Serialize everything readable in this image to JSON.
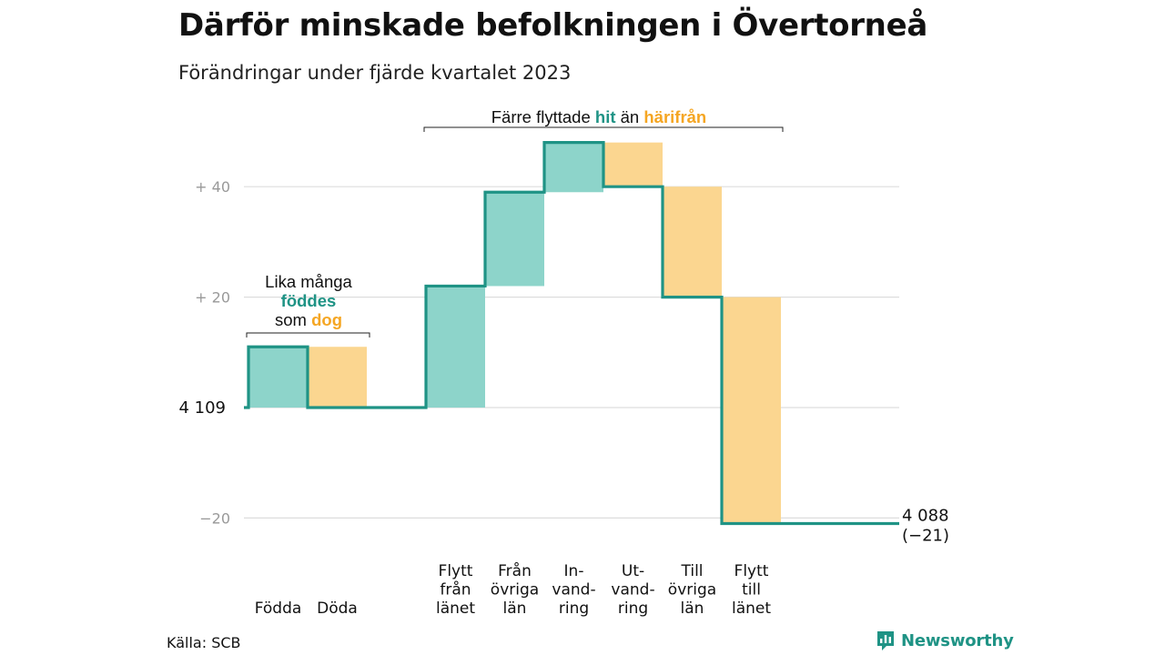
{
  "title": "Därför minskade befolkningen i Övertorneå",
  "subtitle": "Förändringar under fjärde kvartalet 2023",
  "source": "Källa: SCB",
  "brand": "Newsworthy",
  "brand_icon": "bar-chart-logo-icon",
  "colors": {
    "increase": "#8dd4ca",
    "decrease": "#fbd690",
    "line": "#1f9385",
    "accent_teal": "#1f9385",
    "accent_orange": "#f5a623",
    "grid": "#dddddd"
  },
  "chart_data": {
    "type": "waterfall",
    "start_label": "4 109",
    "start_value": 4109,
    "end_value": 4088,
    "end_label": "4 088",
    "end_change_label": "(−21)",
    "ylim": [
      -22,
      48
    ],
    "yticks": [
      {
        "value": 40,
        "label": "+  40"
      },
      {
        "value": 20,
        "label": "+  20"
      },
      {
        "value": 0,
        "label": ""
      },
      {
        "value": -20,
        "label": "−20"
      }
    ],
    "categories": [
      {
        "label_lines": [
          "Födda"
        ],
        "from": 0,
        "to": 11,
        "kind": "increase"
      },
      {
        "label_lines": [
          "Döda"
        ],
        "from": 11,
        "to": 0,
        "kind": "decrease"
      },
      {
        "label_lines": [],
        "from": 0,
        "to": 0,
        "kind": "none"
      },
      {
        "label_lines": [
          "Flytt",
          "från",
          "länet"
        ],
        "from": 0,
        "to": 22,
        "kind": "increase"
      },
      {
        "label_lines": [
          "Från",
          "övriga",
          "län"
        ],
        "from": 22,
        "to": 39,
        "kind": "increase"
      },
      {
        "label_lines": [
          "In-",
          "vand-",
          "ring"
        ],
        "from": 39,
        "to": 48,
        "kind": "increase"
      },
      {
        "label_lines": [
          "Ut-",
          "vand-",
          "ring"
        ],
        "from": 48,
        "to": 40,
        "kind": "decrease"
      },
      {
        "label_lines": [
          "Till",
          "övriga",
          "län"
        ],
        "from": 40,
        "to": 20,
        "kind": "decrease"
      },
      {
        "label_lines": [
          "Flytt",
          "till",
          "länet"
        ],
        "from": 20,
        "to": -21,
        "kind": "decrease"
      }
    ],
    "annotations": [
      {
        "id": "births-deaths",
        "parts": [
          {
            "line": 0,
            "segments": [
              {
                "text": "Lika många",
                "color": "plain"
              }
            ]
          },
          {
            "line": 1,
            "segments": [
              {
                "text": "föddes",
                "color": "teal"
              }
            ]
          },
          {
            "line": 2,
            "segments": [
              {
                "text": "som ",
                "color": "plain"
              },
              {
                "text": "dog",
                "color": "orange"
              }
            ]
          }
        ]
      },
      {
        "id": "migration",
        "parts": [
          {
            "line": 0,
            "segments": [
              {
                "text": "Färre flyttade ",
                "color": "plain"
              },
              {
                "text": "hit",
                "color": "teal"
              },
              {
                "text": "  än ",
                "color": "plain"
              },
              {
                "text": "härifrån",
                "color": "orange"
              }
            ]
          }
        ]
      }
    ]
  }
}
